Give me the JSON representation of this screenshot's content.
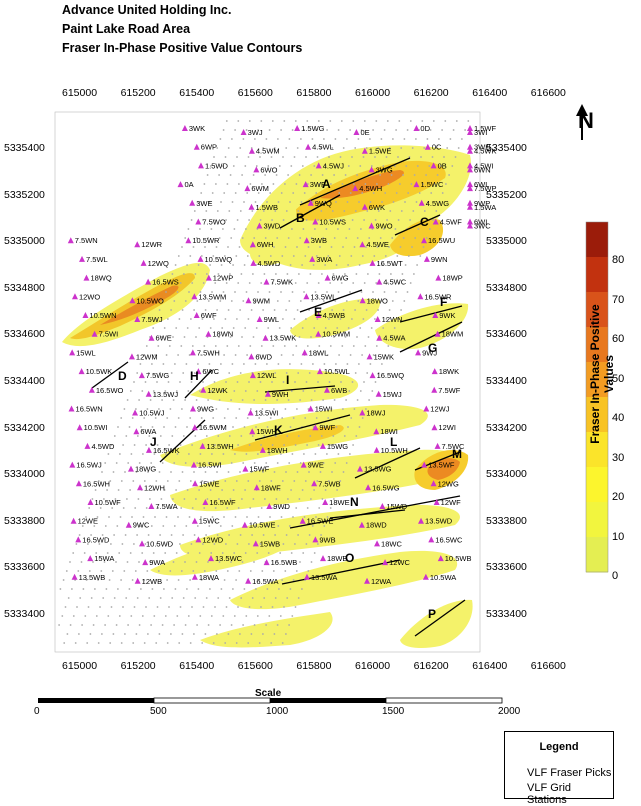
{
  "header": {
    "line1": "Advance United Holding Inc.",
    "line2": "Paint Lake Road Area",
    "line3": "Fraser In-Phase Positive Value Contours"
  },
  "axes": {
    "x_ticks": [
      "615000",
      "615200",
      "615400",
      "615600",
      "615800",
      "616000",
      "616200",
      "616400",
      "616600"
    ],
    "y_ticks": [
      "5335400",
      "5335200",
      "5335000",
      "5334800",
      "5334600",
      "5334400",
      "5334200",
      "5334000",
      "5333800",
      "5333600",
      "5333400"
    ]
  },
  "colorbar": {
    "title": "Fraser In-Phase Positive Values",
    "labels": [
      "80",
      "70",
      "60",
      "50",
      "40",
      "30",
      "20",
      "10",
      "0"
    ],
    "colors": [
      "#9b1c0a",
      "#c2320f",
      "#d9531a",
      "#e8781f",
      "#f39c22",
      "#f8c325",
      "#fbe42a",
      "#fcf52d",
      "#f2f53e",
      "#e4ee52"
    ]
  },
  "scale": {
    "title": "Scale",
    "labels": [
      "0",
      "500",
      "1000",
      "1500",
      "2000"
    ]
  },
  "north": {
    "label": "N"
  },
  "legend": {
    "title": "Legend",
    "items": [
      "VLF Fraser Picks",
      "VLF Grid Stations"
    ]
  },
  "colors": {
    "pick": "#cc33cc",
    "station": "#aaaaaa",
    "contour_base": "#f4f26a",
    "contour_mid": "#f6cc2c",
    "contour_high": "#ec8a22"
  },
  "conductors": [
    "A",
    "B",
    "C",
    "D",
    "E",
    "F",
    "G",
    "H",
    "I",
    "J",
    "K",
    "L",
    "M",
    "N",
    "O",
    "P"
  ],
  "picks": [
    "3WK",
    "3WJ",
    "1.5WG",
    "0E",
    "0D",
    "3WI",
    "1.5WF",
    "6WP",
    "4.5WM",
    "4.5WL",
    "1.5WE",
    "0C",
    "4.5WK",
    "3WH",
    "1.5WD",
    "6WO",
    "4.5WJ",
    "3WG",
    "0B",
    "6WN",
    "4.5WI",
    "0A",
    "6WM",
    "3WF",
    "4.5WH",
    "1.5WC",
    "7.5WP",
    "6WL",
    "3WE",
    "1.5WB",
    "9WQ",
    "6WK",
    "4.5WG",
    "1.5WA",
    "9WP",
    "7.5WO",
    "3WD",
    "10.5WS",
    "9WO",
    "4.5WF",
    "3WC",
    "6WI",
    "7.5WN",
    "12WR",
    "10.5WR",
    "6WH",
    "3WB",
    "4.5WE",
    "16.5WU",
    "7.5WL",
    "12WQ",
    "10.5WQ",
    "4.5WD",
    "3WA",
    "16.5WT",
    "9WN",
    "18WQ",
    "16.5WS",
    "12WP",
    "7.5WK",
    "6WG",
    "4.5WC",
    "18WP",
    "12WO",
    "10.5WO",
    "13.5WM",
    "9WM",
    "13.5WL",
    "18WO",
    "16.5WR",
    "10.5WN",
    "7.5WJ",
    "6WF",
    "9WL",
    "4.5WB",
    "12WN",
    "9WK",
    "7.5WI",
    "6WE",
    "18WN",
    "13.5WK",
    "10.5WM",
    "4.5WA",
    "18WM",
    "15WL",
    "12WM",
    "7.5WH",
    "6WD",
    "18WL",
    "15WK",
    "9WJ",
    "10.5WK",
    "7.5WG",
    "6WC",
    "12WL",
    "10.5WL",
    "16.5WQ",
    "18WK",
    "16.5WO",
    "13.5WJ",
    "12WK",
    "9WH",
    "6WB",
    "15WJ",
    "7.5WF",
    "16.5WN",
    "10.5WJ",
    "9WG",
    "13.5WI",
    "15WI",
    "18WJ",
    "12WJ",
    "10.5WI",
    "6WA",
    "16.5WM",
    "15WH",
    "9WF",
    "18WI",
    "12WI",
    "4.5WD",
    "16.5WK",
    "13.5WH",
    "18WH",
    "15WG",
    "10.5WH",
    "7.5WC",
    "16.5WJ",
    "18WG",
    "16.5WI",
    "15WF",
    "9WE",
    "13.5WG",
    "13.5WF",
    "16.5WH",
    "12WH",
    "15WE",
    "18WF",
    "7.5WB",
    "16.5WG",
    "12WG",
    "10.5WF",
    "7.5WA",
    "16.5WF",
    "9WD",
    "18WE",
    "15WD",
    "12WF",
    "12WE",
    "9WC",
    "15WC",
    "10.5WE",
    "16.5WE",
    "18WD",
    "13.5WD",
    "16.5WD",
    "10.5WD",
    "12WD",
    "15WB",
    "9WB",
    "18WC",
    "16.5WC",
    "15WA",
    "9WA",
    "13.5WC",
    "16.5WB",
    "18WB",
    "12WC",
    "10.5WB",
    "13.5WB",
    "12WB",
    "18WA",
    "16.5WA",
    "13.5WA",
    "12WA",
    "10.5WA"
  ]
}
